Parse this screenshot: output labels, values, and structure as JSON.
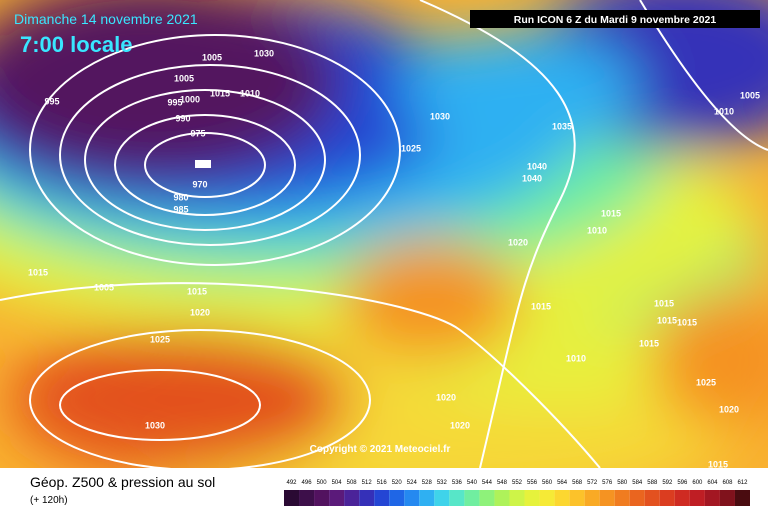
{
  "header": {
    "date": "Dimanche 14 novembre 2021",
    "time": "7:00 locale",
    "run": "Run ICON 6 Z du Mardi 9 novembre 2021"
  },
  "copyright": "Copyright © 2021 Meteociel.fr",
  "footer": {
    "title": "Géop. Z500 & pression au sol",
    "lead": "(+ 120h)"
  },
  "colorbar": {
    "labels": [
      492,
      496,
      500,
      504,
      508,
      512,
      516,
      520,
      524,
      528,
      532,
      536,
      540,
      544,
      548,
      552,
      556,
      560,
      564,
      568,
      572,
      576,
      580,
      584,
      588,
      592,
      596,
      600,
      604,
      608,
      612
    ],
    "colors": [
      "#2a0a33",
      "#3d0f4a",
      "#52125f",
      "#5b1a7a",
      "#4b2399",
      "#3530b8",
      "#2446d4",
      "#1f66e6",
      "#2589f0",
      "#2fb0f2",
      "#3fd3ea",
      "#57e6c8",
      "#70eea0",
      "#8ef27a",
      "#aef25a",
      "#cef448",
      "#e6f23c",
      "#f6ea36",
      "#fcd730",
      "#fcc22a",
      "#f9aa25",
      "#f59322",
      "#f07c20",
      "#ea651f",
      "#e3511f",
      "#db3d20",
      "#cf2b22",
      "#bf1e24",
      "#a31722",
      "#80121c",
      "#4a0c10"
    ]
  },
  "isobars": [
    1005,
    1010,
    1030,
    1005,
    995,
    1000,
    1015,
    990,
    975,
    970,
    980,
    985,
    995,
    1030,
    1025,
    1035,
    1040,
    1040,
    1015,
    1010,
    1020,
    1015,
    1005,
    1015,
    1020,
    1025,
    1015,
    1015,
    1015,
    1015,
    1015,
    1010,
    1025,
    1020,
    1020,
    1020,
    1030,
    1015,
    1005,
    1010
  ]
}
